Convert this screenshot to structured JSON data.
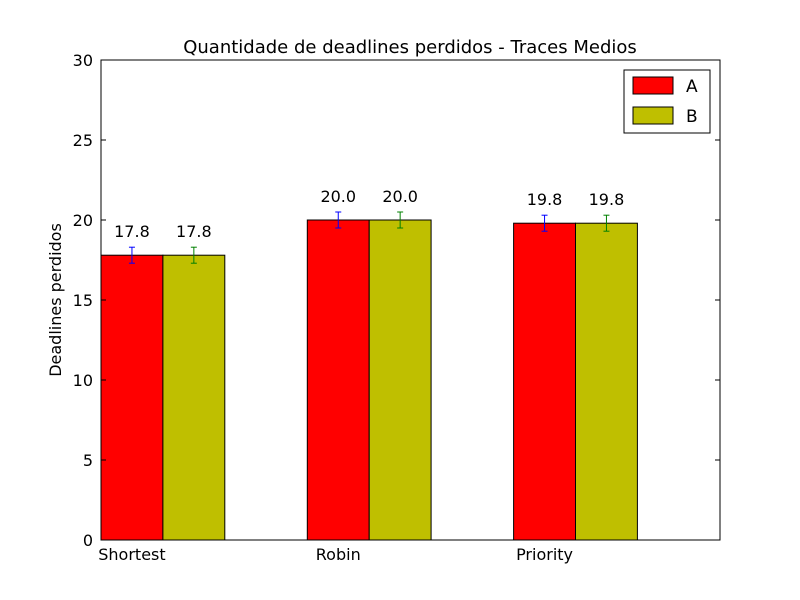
{
  "chart_data": {
    "type": "bar",
    "title": "Quantidade de deadlines perdidos - Traces Medios",
    "xlabel": "",
    "ylabel": "Deadlines perdidos",
    "categories": [
      "Shortest",
      "Robin",
      "Priority"
    ],
    "series": [
      {
        "name": "A",
        "values": [
          17.8,
          20.0,
          19.8
        ],
        "errors": [
          0.5,
          0.5,
          0.5
        ],
        "color": "#ff0000",
        "error_color": "#0000ff"
      },
      {
        "name": "B",
        "values": [
          17.8,
          20.0,
          19.8
        ],
        "errors": [
          0.5,
          0.5,
          0.5
        ],
        "color": "#bfbf00",
        "error_color": "#008000"
      }
    ],
    "value_labels": [
      "17.8",
      "20.0",
      "19.8"
    ],
    "ylim": [
      0,
      30
    ],
    "yticks": [
      "0",
      "5",
      "10",
      "15",
      "20",
      "25",
      "30"
    ],
    "grid": false,
    "legend_position": "top-right"
  }
}
